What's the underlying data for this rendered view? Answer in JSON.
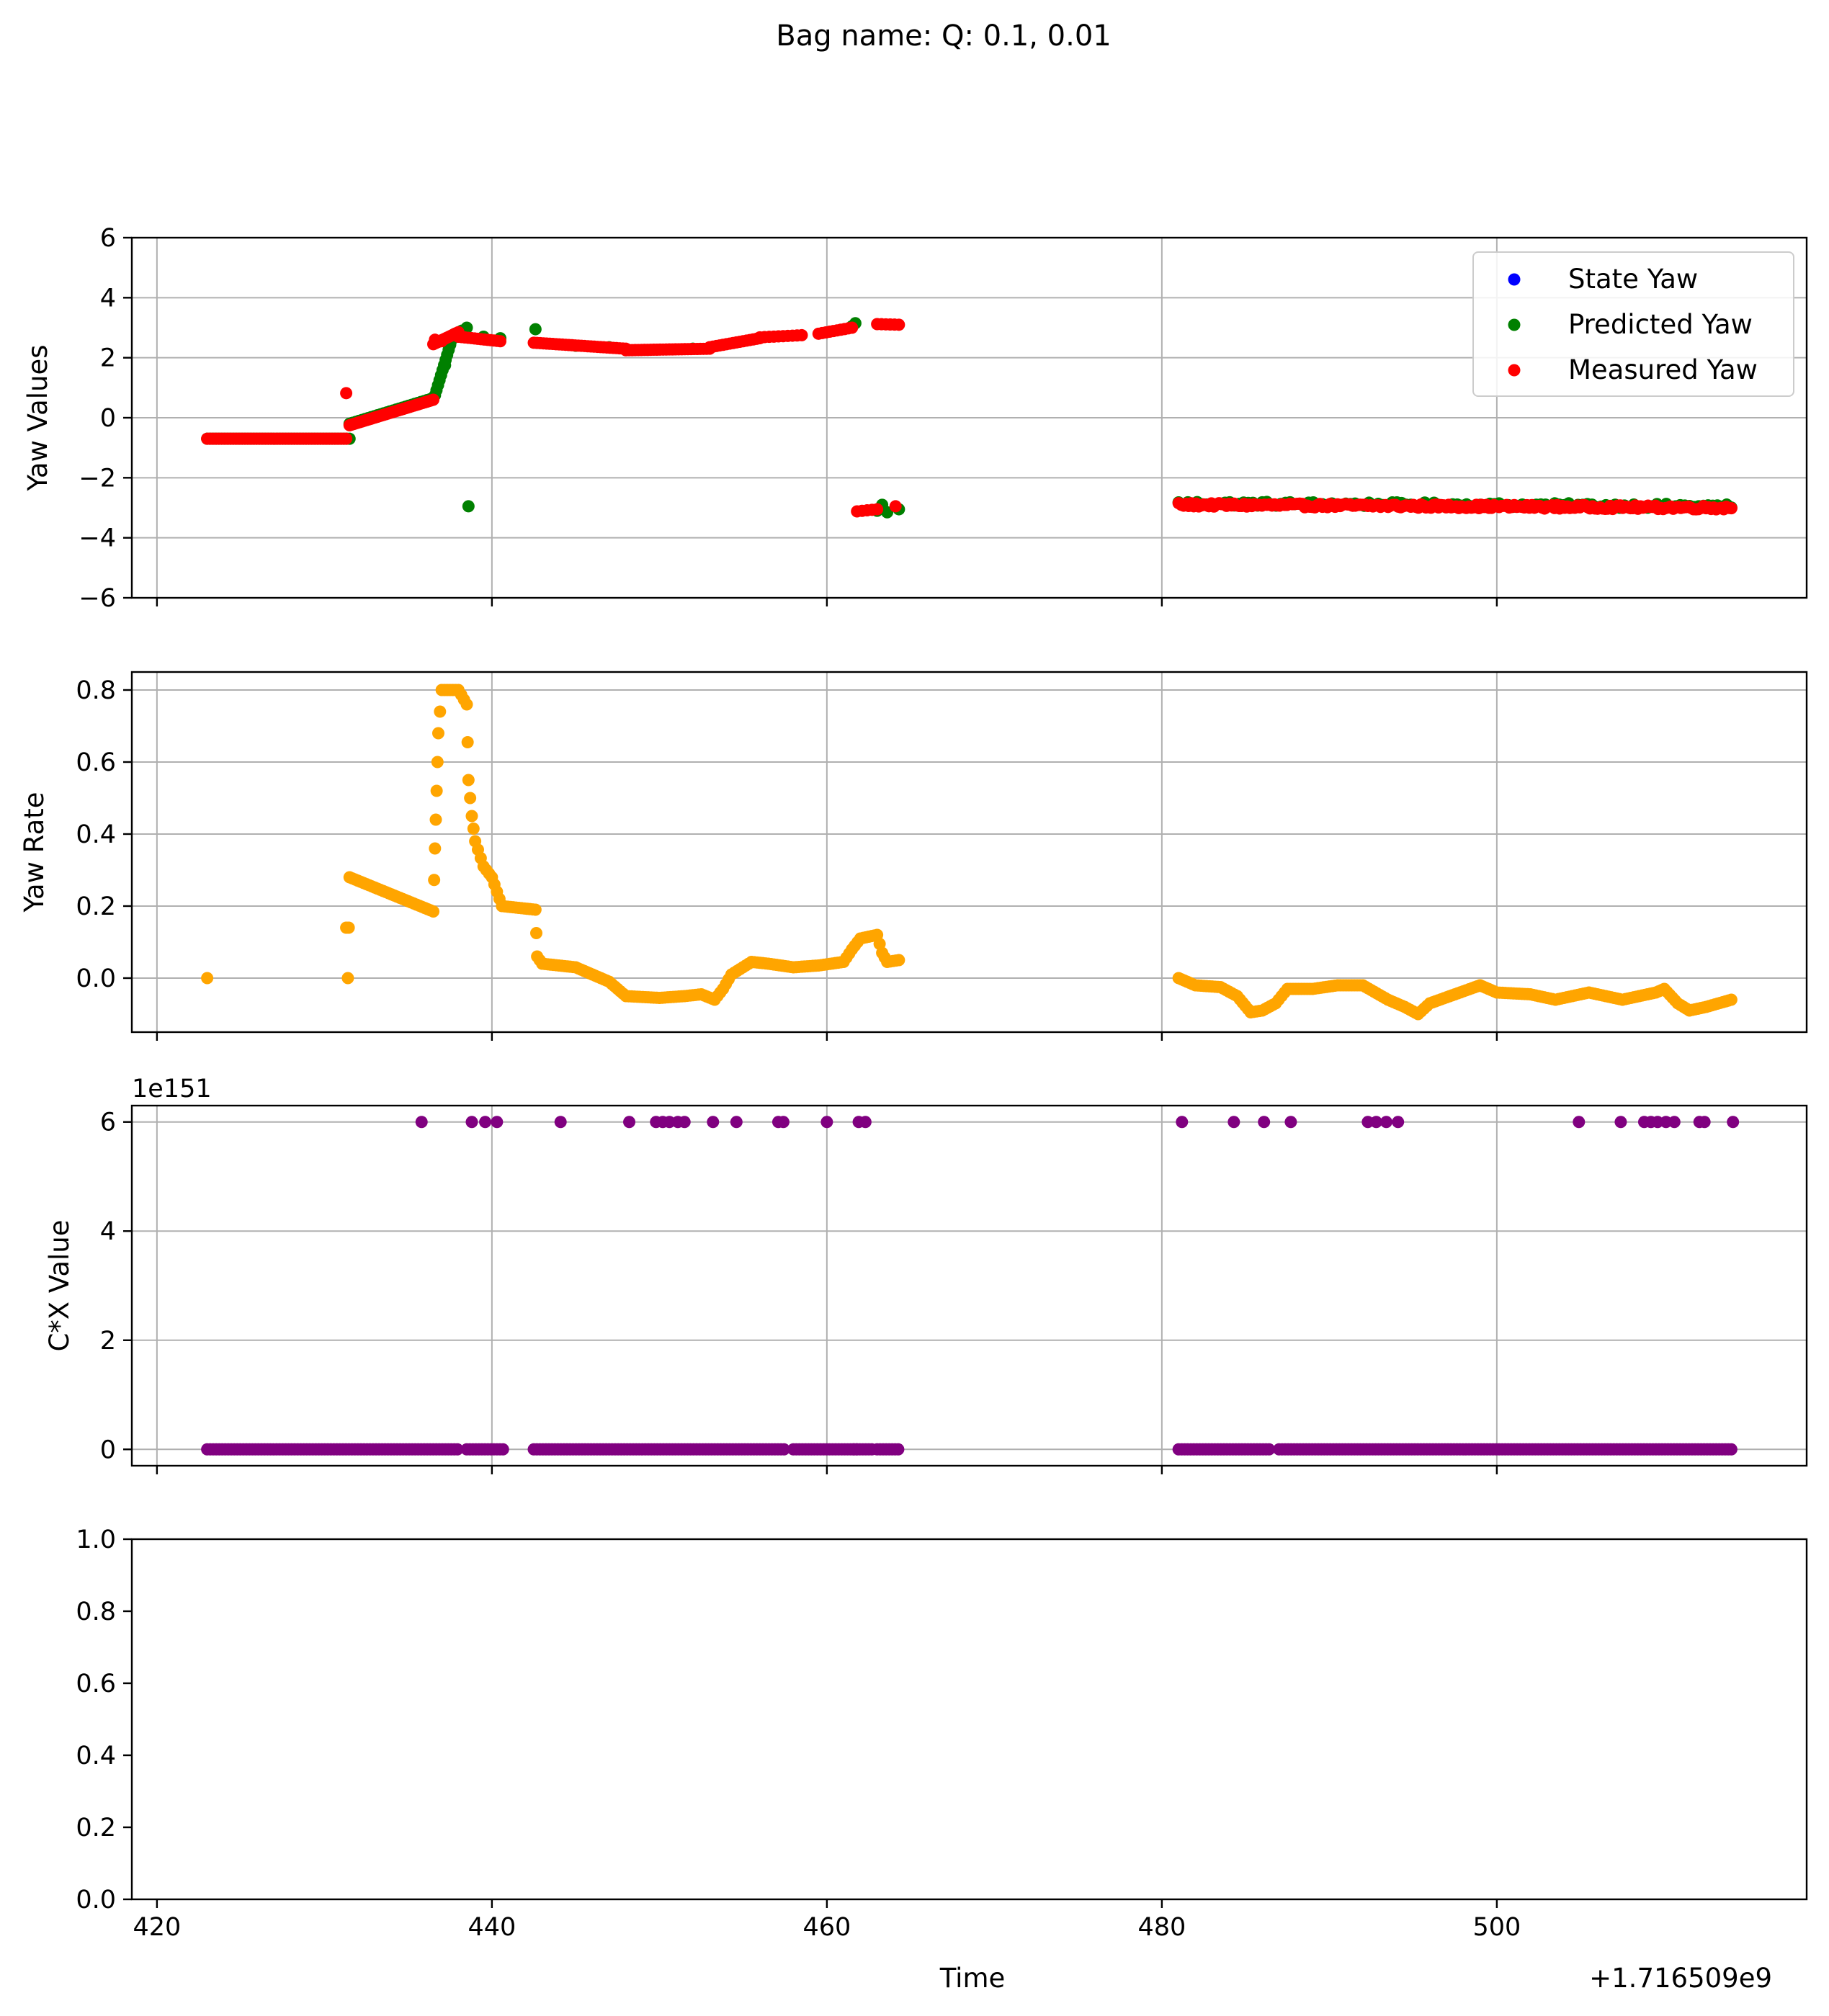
{
  "figure": {
    "suptitle": "Bag name: Q: 0.1, 0.01",
    "xlabel": "Time",
    "x_offset_text": "+1.716509e9"
  },
  "chart_data": [
    {
      "type": "scatter",
      "ylabel": "Yaw Values",
      "xlim": [
        418.5,
        518.5
      ],
      "ylim": [
        -6,
        6
      ],
      "xticks": [
        420,
        440,
        460,
        480,
        500
      ],
      "yticks": [
        -6,
        -4,
        -2,
        0,
        2,
        4,
        6
      ],
      "ytick_labels": [
        "−6",
        "−4",
        "−2",
        "0",
        "2",
        "4",
        "6"
      ],
      "grid": true,
      "legend_position": "upper right",
      "legend": [
        "State Yaw",
        "Predicted Yaw",
        "Measured Yaw"
      ],
      "series": [
        {
          "name": "State Yaw",
          "color": "#0000ff",
          "points": []
        },
        {
          "name": "Predicted Yaw",
          "color": "#008000",
          "segments": [
            {
              "x0": 423.0,
              "x1": 431.5,
              "y0": -0.7,
              "y1": -0.7,
              "n": 50
            },
            {
              "x0": 431.5,
              "x1": 436.5,
              "y0": -0.2,
              "y1": 0.65,
              "n": 28
            },
            {
              "x0": 436.6,
              "x1": 437.6,
              "y0": 0.75,
              "y1": 2.6,
              "n": 12
            },
            {
              "x0": 481.0,
              "x1": 514.0,
              "y0": -2.85,
              "y1": -2.95,
              "n": 120,
              "jitter": 0.07
            }
          ],
          "points": [
            [
              437.2,
              1.75
            ],
            [
              437.8,
              2.8
            ],
            [
              438.2,
              2.9
            ],
            [
              438.5,
              3.0
            ],
            [
              438.6,
              -2.95
            ],
            [
              439.5,
              2.7
            ],
            [
              440.5,
              2.65
            ],
            [
              442.6,
              2.95
            ],
            [
              445.0,
              2.4
            ],
            [
              447.0,
              2.35
            ],
            [
              452.0,
              2.3
            ],
            [
              461.5,
              3.05
            ],
            [
              461.7,
              3.15
            ],
            [
              463.0,
              -3.1
            ],
            [
              463.3,
              -2.9
            ],
            [
              463.6,
              -3.15
            ],
            [
              464.3,
              -3.05
            ]
          ]
        },
        {
          "name": "Measured Yaw",
          "color": "#ff0000",
          "segments": [
            {
              "x0": 423.0,
              "x1": 431.3,
              "y0": -0.7,
              "y1": -0.7,
              "n": 60
            },
            {
              "x0": 431.5,
              "x1": 436.5,
              "y0": -0.25,
              "y1": 0.6,
              "n": 40
            },
            {
              "x0": 436.5,
              "x1": 438.0,
              "y0": 2.45,
              "y1": 2.85,
              "n": 12
            },
            {
              "x0": 438.0,
              "x1": 440.5,
              "y0": 2.7,
              "y1": 2.55,
              "n": 14
            },
            {
              "x0": 442.5,
              "x1": 448.0,
              "y0": 2.5,
              "y1": 2.3,
              "n": 30
            },
            {
              "x0": 448.0,
              "x1": 453.0,
              "y0": 2.25,
              "y1": 2.3,
              "n": 28
            },
            {
              "x0": 453.0,
              "x1": 456.0,
              "y0": 2.35,
              "y1": 2.65,
              "n": 16
            },
            {
              "x0": 456.0,
              "x1": 458.5,
              "y0": 2.68,
              "y1": 2.75,
              "n": 10
            },
            {
              "x0": 459.5,
              "x1": 461.5,
              "y0": 2.8,
              "y1": 3.0,
              "n": 10
            },
            {
              "x0": 463.0,
              "x1": 464.3,
              "y0": 3.12,
              "y1": 3.1,
              "n": 6
            },
            {
              "x0": 461.8,
              "x1": 463.0,
              "y0": -3.12,
              "y1": -3.05,
              "n": 5
            },
            {
              "x0": 481.0,
              "x1": 514.0,
              "y0": -2.9,
              "y1": -3.0,
              "n": 220,
              "jitter": 0.06
            }
          ],
          "points": [
            [
              431.3,
              0.82
            ],
            [
              436.6,
              2.6
            ],
            [
              437.0,
              2.55
            ],
            [
              464.1,
              -2.95
            ]
          ]
        }
      ]
    },
    {
      "type": "scatter",
      "ylabel": "Yaw Rate",
      "xlim": [
        418.5,
        518.5
      ],
      "ylim": [
        -0.15,
        0.85
      ],
      "xticks": [
        420,
        440,
        460,
        480,
        500
      ],
      "yticks": [
        0.0,
        0.2,
        0.4,
        0.6,
        0.8
      ],
      "ytick_labels": [
        "0.0",
        "0.2",
        "0.4",
        "0.6",
        "0.8"
      ],
      "grid": true,
      "series": [
        {
          "name": "",
          "color": "#ffa500",
          "polyline": [
            [
              423.0,
              0.0
            ],
            [
              431.4,
              0.0
            ],
            [
              431.5,
              0.28
            ],
            [
              436.5,
              0.185
            ],
            [
              436.6,
              0.36
            ],
            [
              436.7,
              0.52
            ],
            [
              436.8,
              0.68
            ],
            [
              437.0,
              0.8
            ],
            [
              438.0,
              0.8
            ],
            [
              438.5,
              0.76
            ],
            [
              438.6,
              0.55
            ],
            [
              438.8,
              0.45
            ],
            [
              439.0,
              0.38
            ],
            [
              439.5,
              0.31
            ],
            [
              440.0,
              0.28
            ],
            [
              440.3,
              0.24
            ],
            [
              440.6,
              0.2
            ],
            [
              442.6,
              0.19
            ],
            [
              442.7,
              0.06
            ],
            [
              443.0,
              0.04
            ],
            [
              445.0,
              0.03
            ],
            [
              446.0,
              0.01
            ],
            [
              447.0,
              -0.01
            ],
            [
              448.0,
              -0.05
            ],
            [
              450.0,
              -0.055
            ],
            [
              451.5,
              -0.05
            ],
            [
              452.5,
              -0.045
            ],
            [
              453.3,
              -0.06
            ],
            [
              453.8,
              -0.03
            ],
            [
              454.3,
              0.01
            ],
            [
              455.5,
              0.045
            ],
            [
              456.5,
              0.04
            ],
            [
              458.0,
              0.03
            ],
            [
              459.5,
              0.035
            ],
            [
              461.0,
              0.045
            ],
            [
              461.5,
              0.08
            ],
            [
              462.0,
              0.11
            ],
            [
              463.0,
              0.12
            ],
            [
              463.3,
              0.07
            ],
            [
              463.6,
              0.045
            ],
            [
              464.3,
              0.05
            ],
            [
              481.0,
              0.0
            ],
            [
              482.0,
              -0.02
            ],
            [
              483.5,
              -0.025
            ],
            [
              484.5,
              -0.05
            ],
            [
              485.3,
              -0.095
            ],
            [
              486.0,
              -0.09
            ],
            [
              486.8,
              -0.07
            ],
            [
              487.5,
              -0.03
            ],
            [
              489.0,
              -0.03
            ],
            [
              490.5,
              -0.02
            ],
            [
              492.0,
              -0.02
            ],
            [
              493.5,
              -0.06
            ],
            [
              494.5,
              -0.08
            ],
            [
              495.3,
              -0.1
            ],
            [
              496.0,
              -0.07
            ],
            [
              497.5,
              -0.045
            ],
            [
              499.0,
              -0.02
            ],
            [
              500.0,
              -0.04
            ],
            [
              502.0,
              -0.045
            ],
            [
              503.5,
              -0.06
            ],
            [
              505.5,
              -0.04
            ],
            [
              507.5,
              -0.06
            ],
            [
              509.5,
              -0.04
            ],
            [
              510.0,
              -0.03
            ],
            [
              510.8,
              -0.07
            ],
            [
              511.5,
              -0.09
            ],
            [
              512.5,
              -0.08
            ],
            [
              514.0,
              -0.06
            ]
          ],
          "points": [
            [
              431.3,
              0.14
            ]
          ]
        }
      ]
    },
    {
      "type": "scatter",
      "ylabel": "C*X Value",
      "offset_text": "1e151",
      "xlim": [
        418.5,
        518.5
      ],
      "ylim": [
        -0.3,
        6.3
      ],
      "xticks": [
        420,
        440,
        460,
        480,
        500
      ],
      "yticks": [
        0,
        2,
        4,
        6
      ],
      "ytick_labels": [
        "0",
        "2",
        "4",
        "6"
      ],
      "grid": true,
      "series": [
        {
          "name": "",
          "color": "#800080",
          "zero_ranges": [
            [
              423.0,
              438.0
            ],
            [
              438.5,
              440.8
            ],
            [
              442.5,
              457.5
            ],
            [
              458.0,
              461.8
            ],
            [
              461.6,
              462.8
            ],
            [
              463.0,
              464.4
            ],
            [
              481.0,
              486.5
            ],
            [
              487.0,
              514.0
            ]
          ],
          "zero_value": 0,
          "high_value": 6.0,
          "high_x": [
            435.8,
            438.8,
            439.6,
            440.3,
            444.1,
            448.2,
            449.8,
            450.2,
            450.6,
            451.1,
            451.5,
            453.2,
            454.6,
            457.1,
            457.4,
            460.0,
            461.9,
            462.3,
            481.2,
            484.3,
            486.1,
            487.7,
            492.3,
            492.8,
            493.4,
            494.1,
            504.9,
            507.4,
            508.8,
            509.2,
            509.6,
            510.1,
            510.6,
            512.1,
            512.4,
            514.1
          ]
        }
      ]
    },
    {
      "type": "scatter",
      "ylabel": "",
      "xlim": [
        418.5,
        518.5
      ],
      "ylim": [
        0,
        1
      ],
      "xticks": [
        420,
        440,
        460,
        480,
        500
      ],
      "xtick_labels": [
        "420",
        "440",
        "460",
        "480",
        "500"
      ],
      "yticks": [
        0.0,
        0.2,
        0.4,
        0.6,
        0.8,
        1.0
      ],
      "ytick_labels": [
        "0.0",
        "0.2",
        "0.4",
        "0.6",
        "0.8",
        "1.0"
      ],
      "grid": false,
      "series": []
    }
  ]
}
